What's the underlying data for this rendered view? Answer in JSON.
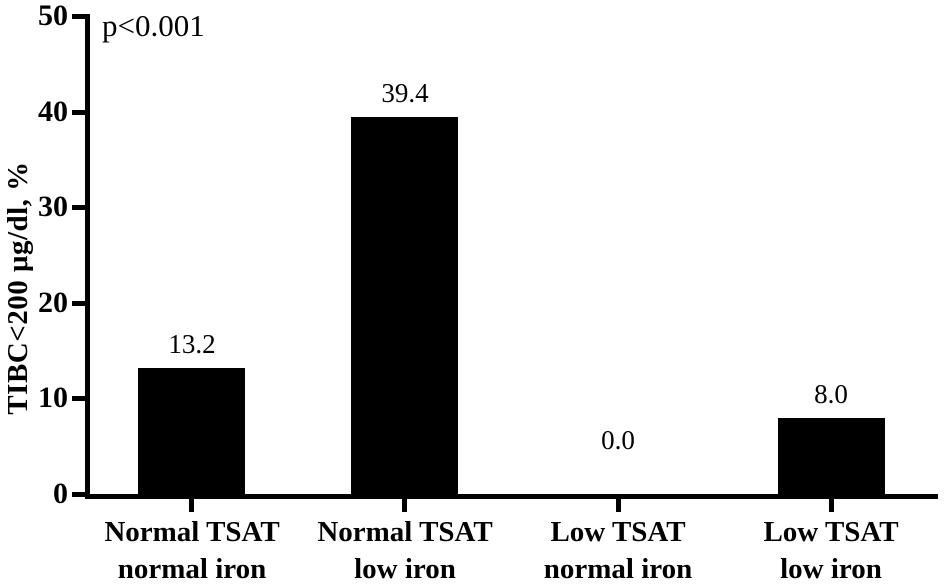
{
  "figure": {
    "background_color": "#ffffff",
    "annotation": "p<0.001"
  },
  "chart_data": {
    "type": "bar",
    "title": "",
    "xlabel": "",
    "ylabel": "TIBC<200 μg/dl, %",
    "ylim": [
      0,
      50
    ],
    "yticks": [
      0,
      10,
      20,
      30,
      40,
      50
    ],
    "grid": false,
    "legend": null,
    "bar_color": "#000000",
    "axis_color": "#000000",
    "text_color": "#000000",
    "annotation": "p<0.001",
    "categories": [
      [
        "Normal TSAT",
        "normal iron"
      ],
      [
        "Normal TSAT",
        "low iron"
      ],
      [
        "Low TSAT",
        "normal iron"
      ],
      [
        "Low TSAT",
        "low iron"
      ]
    ],
    "values": [
      13.2,
      39.4,
      0.0,
      8.0
    ],
    "value_labels": [
      "13.2",
      "39.4",
      "0.0",
      "8.0"
    ]
  }
}
